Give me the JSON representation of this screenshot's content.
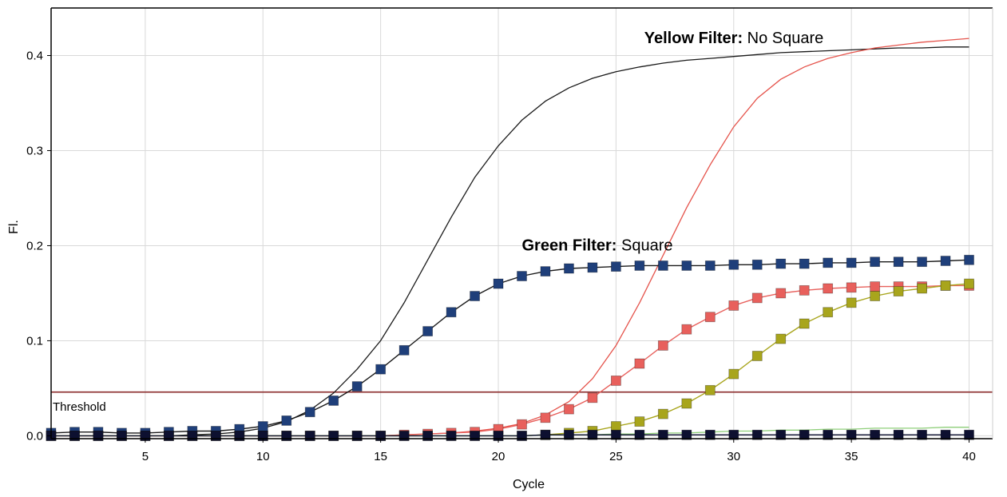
{
  "chart_data": {
    "type": "line",
    "xlabel": "Cycle",
    "ylabel": "Fl.",
    "xlim": [
      1,
      41
    ],
    "ylim": [
      -0.003,
      0.45
    ],
    "xticks": [
      5,
      10,
      15,
      20,
      25,
      30,
      35,
      40
    ],
    "yticks": [
      0.0,
      0.1,
      0.2,
      0.3,
      0.4
    ],
    "grid": true,
    "threshold": {
      "label": "Threshold",
      "value": 0.046,
      "color": "#8b2c2c"
    },
    "annotations": [
      {
        "bold": "Yellow Filter:",
        "normal": " No Square",
        "x": 26.2,
        "y": 0.418
      },
      {
        "bold": "Green Filter:",
        "normal": " Square",
        "x": 21.0,
        "y": 0.2
      }
    ],
    "series": [
      {
        "color": "#1a1a1a",
        "marker": "none",
        "x": [
          1,
          2,
          3,
          4,
          5,
          6,
          7,
          8,
          9,
          10,
          11,
          12,
          13,
          14,
          15,
          16,
          17,
          18,
          19,
          20,
          21,
          22,
          23,
          24,
          25,
          26,
          27,
          28,
          29,
          30,
          31,
          32,
          33,
          34,
          35,
          36,
          37,
          38,
          39,
          40
        ],
        "values": [
          0.0,
          0.0,
          0.0,
          0.0,
          0.0,
          0.0,
          0.001,
          0.002,
          0.004,
          0.008,
          0.015,
          0.027,
          0.045,
          0.07,
          0.1,
          0.14,
          0.185,
          0.23,
          0.272,
          0.305,
          0.332,
          0.352,
          0.366,
          0.376,
          0.383,
          0.388,
          0.392,
          0.395,
          0.397,
          0.399,
          0.401,
          0.403,
          0.404,
          0.405,
          0.406,
          0.407,
          0.408,
          0.408,
          0.409,
          0.409
        ]
      },
      {
        "color": "#e5534b",
        "marker": "none",
        "x": [
          1,
          2,
          3,
          4,
          5,
          6,
          7,
          8,
          9,
          10,
          11,
          12,
          13,
          14,
          15,
          16,
          17,
          18,
          19,
          20,
          21,
          22,
          23,
          24,
          25,
          26,
          27,
          28,
          29,
          30,
          31,
          32,
          33,
          34,
          35,
          36,
          37,
          38,
          39,
          40
        ],
        "values": [
          0.0,
          0.0,
          0.0,
          0.0,
          0.0,
          0.0,
          0.0,
          0.0,
          0.0,
          0.0,
          0.0,
          0.0,
          0.0,
          0.0,
          0.0,
          0.001,
          0.002,
          0.003,
          0.005,
          0.008,
          0.013,
          0.022,
          0.036,
          0.06,
          0.095,
          0.14,
          0.19,
          0.24,
          0.285,
          0.325,
          0.355,
          0.375,
          0.388,
          0.397,
          0.403,
          0.408,
          0.411,
          0.414,
          0.416,
          0.418
        ]
      },
      {
        "color": "#1f3f7a",
        "marker": "square",
        "x": [
          1,
          2,
          3,
          4,
          5,
          6,
          7,
          8,
          9,
          10,
          11,
          12,
          13,
          14,
          15,
          16,
          17,
          18,
          19,
          20,
          21,
          22,
          23,
          24,
          25,
          26,
          27,
          28,
          29,
          30,
          31,
          32,
          33,
          34,
          35,
          36,
          37,
          38,
          39,
          40
        ],
        "values": [
          0.003,
          0.004,
          0.004,
          0.003,
          0.003,
          0.004,
          0.005,
          0.005,
          0.007,
          0.01,
          0.016,
          0.025,
          0.037,
          0.052,
          0.07,
          0.09,
          0.11,
          0.13,
          0.147,
          0.16,
          0.168,
          0.173,
          0.176,
          0.177,
          0.178,
          0.179,
          0.179,
          0.179,
          0.179,
          0.18,
          0.18,
          0.181,
          0.181,
          0.182,
          0.182,
          0.183,
          0.183,
          0.183,
          0.184,
          0.185
        ]
      },
      {
        "color": "#e8605c",
        "marker": "square",
        "x": [
          1,
          2,
          3,
          4,
          5,
          6,
          7,
          8,
          9,
          10,
          11,
          12,
          13,
          14,
          15,
          16,
          17,
          18,
          19,
          20,
          21,
          22,
          23,
          24,
          25,
          26,
          27,
          28,
          29,
          30,
          31,
          32,
          33,
          34,
          35,
          36,
          37,
          38,
          39,
          40
        ],
        "values": [
          0.0,
          0.0,
          0.0,
          0.0,
          0.0,
          0.0,
          0.0,
          0.0,
          0.0,
          0.0,
          0.0,
          0.0,
          0.0,
          0.0,
          0.0,
          0.001,
          0.002,
          0.003,
          0.004,
          0.007,
          0.012,
          0.019,
          0.028,
          0.04,
          0.058,
          0.076,
          0.095,
          0.112,
          0.125,
          0.137,
          0.145,
          0.15,
          0.153,
          0.155,
          0.156,
          0.157,
          0.157,
          0.157,
          0.158,
          0.158
        ]
      },
      {
        "color": "#a8a51c",
        "marker": "square",
        "x": [
          1,
          2,
          3,
          4,
          5,
          6,
          7,
          8,
          9,
          10,
          11,
          12,
          13,
          14,
          15,
          16,
          17,
          18,
          19,
          20,
          21,
          22,
          23,
          24,
          25,
          26,
          27,
          28,
          29,
          30,
          31,
          32,
          33,
          34,
          35,
          36,
          37,
          38,
          39,
          40
        ],
        "values": [
          0.0,
          0.0,
          0.0,
          0.0,
          0.0,
          0.0,
          0.0,
          0.0,
          0.0,
          0.0,
          0.0,
          0.0,
          0.0,
          0.0,
          0.0,
          0.0,
          0.0,
          0.0,
          0.0,
          0.0,
          0.0,
          0.001,
          0.003,
          0.005,
          0.01,
          0.015,
          0.023,
          0.034,
          0.048,
          0.065,
          0.084,
          0.102,
          0.118,
          0.13,
          0.14,
          0.147,
          0.152,
          0.155,
          0.158,
          0.16
        ]
      },
      {
        "color": "#8fcf7a",
        "marker": "none",
        "x": [
          1,
          2,
          3,
          4,
          5,
          6,
          7,
          8,
          9,
          10,
          11,
          12,
          13,
          14,
          15,
          16,
          17,
          18,
          19,
          20,
          21,
          22,
          23,
          24,
          25,
          26,
          27,
          28,
          29,
          30,
          31,
          32,
          33,
          34,
          35,
          36,
          37,
          38,
          39,
          40
        ],
        "values": [
          0.0,
          0.0,
          0.0,
          0.0,
          0.0,
          0.0,
          0.0,
          0.0,
          0.0,
          0.0,
          0.0,
          0.0,
          0.0,
          0.0,
          0.0,
          0.0,
          0.0,
          0.0,
          0.0,
          0.0,
          0.0,
          0.001,
          0.001,
          0.001,
          0.002,
          0.002,
          0.003,
          0.003,
          0.004,
          0.005,
          0.005,
          0.006,
          0.006,
          0.007,
          0.007,
          0.008,
          0.008,
          0.008,
          0.009,
          0.009
        ]
      },
      {
        "color": "#0d1030",
        "marker": "square",
        "x": [
          1,
          2,
          3,
          4,
          5,
          6,
          7,
          8,
          9,
          10,
          11,
          12,
          13,
          14,
          15,
          16,
          17,
          18,
          19,
          20,
          21,
          22,
          23,
          24,
          25,
          26,
          27,
          28,
          29,
          30,
          31,
          32,
          33,
          34,
          35,
          36,
          37,
          38,
          39,
          40
        ],
        "values": [
          0.0,
          0.0,
          0.0,
          0.0,
          0.0,
          0.0,
          0.0,
          0.0,
          0.0,
          0.0,
          0.0,
          0.0,
          0.0,
          0.0,
          0.0,
          0.0,
          0.0,
          0.0,
          0.0,
          0.0,
          0.0,
          0.001,
          0.001,
          0.001,
          0.001,
          0.001,
          0.001,
          0.001,
          0.001,
          0.001,
          0.001,
          0.001,
          0.001,
          0.001,
          0.001,
          0.001,
          0.001,
          0.001,
          0.001,
          0.001
        ]
      }
    ]
  }
}
